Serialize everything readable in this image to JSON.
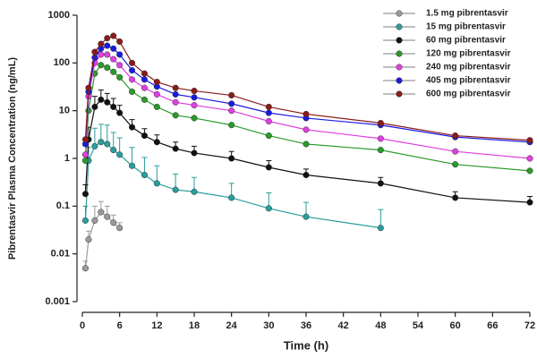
{
  "chart_data": {
    "type": "line",
    "y_label": "Pibrentasvir Plasma Concentration (ng/mL)",
    "x_label": "Time (h)",
    "ylog": true,
    "ylim": [
      0.001,
      1000
    ],
    "yticks": [
      0.001,
      0.01,
      0.1,
      1,
      10,
      100,
      1000
    ],
    "xlim": [
      0,
      72
    ],
    "xticks": [
      0,
      6,
      12,
      18,
      24,
      30,
      36,
      42,
      48,
      54,
      60,
      66,
      72
    ],
    "legend": "upper right",
    "series": [
      {
        "name": "1.5 mg pibrentasvir",
        "color": "#9a9a9a",
        "x": [
          0.5,
          1,
          2,
          3,
          4,
          5,
          6
        ],
        "values": [
          0.005,
          0.02,
          0.05,
          0.075,
          0.06,
          0.045,
          0.035
        ],
        "errors": [
          0.002,
          0.01,
          0.05,
          0.05,
          0.04,
          0.02,
          0.01
        ]
      },
      {
        "name": "15 mg pibrentasvir",
        "color": "#2a9d9d",
        "x": [
          0.5,
          1,
          2,
          3,
          4,
          5,
          6,
          8,
          10,
          12,
          15,
          18,
          24,
          30,
          36,
          48
        ],
        "values": [
          0.05,
          0.9,
          1.8,
          2.2,
          2.0,
          1.5,
          1.2,
          0.7,
          0.45,
          0.3,
          0.22,
          0.2,
          0.15,
          0.09,
          0.06,
          0.035
        ],
        "errors": [
          0.05,
          0.8,
          2.5,
          3,
          3,
          2,
          1.5,
          1,
          0.6,
          0.4,
          0.25,
          0.2,
          0.15,
          0.1,
          0.06,
          0.05
        ]
      },
      {
        "name": "60 mg pibrentasvir",
        "color": "#111111",
        "x": [
          0.5,
          1,
          2,
          3,
          4,
          5,
          6,
          8,
          10,
          12,
          15,
          18,
          24,
          30,
          36,
          48,
          60,
          72
        ],
        "values": [
          0.18,
          2.5,
          12,
          17,
          15,
          12,
          9,
          4.5,
          3,
          2.2,
          1.6,
          1.3,
          1.0,
          0.65,
          0.45,
          0.3,
          0.15,
          0.12
        ],
        "errors": [
          0.1,
          2,
          8,
          10,
          8,
          6,
          4,
          2,
          1.2,
          0.9,
          0.6,
          0.5,
          0.4,
          0.25,
          0.15,
          0.1,
          0.05,
          0.04
        ]
      },
      {
        "name": "120 mg pibrentasvir",
        "color": "#2a9a2a",
        "x": [
          0.5,
          1,
          2,
          3,
          4,
          5,
          6,
          8,
          10,
          12,
          15,
          18,
          24,
          30,
          36,
          48,
          60,
          72
        ],
        "values": [
          0.9,
          10,
          60,
          90,
          80,
          65,
          50,
          25,
          17,
          12,
          8,
          7,
          5,
          3,
          2,
          1.5,
          0.75,
          0.55
        ]
      },
      {
        "name": "240 mg pibrentasvir",
        "color": "#e040e0",
        "x": [
          0.5,
          1,
          2,
          3,
          4,
          5,
          6,
          8,
          10,
          12,
          15,
          18,
          24,
          30,
          36,
          48,
          60,
          72
        ],
        "values": [
          1.2,
          20,
          100,
          150,
          150,
          120,
          90,
          45,
          30,
          22,
          15,
          13,
          10,
          6,
          4,
          2.6,
          1.4,
          1.0
        ]
      },
      {
        "name": "405 mg pibrentasvir",
        "color": "#1a1ae0",
        "x": [
          0.5,
          1,
          2,
          3,
          4,
          5,
          6,
          8,
          10,
          12,
          15,
          18,
          24,
          30,
          36,
          48,
          60,
          72
        ],
        "values": [
          2,
          25,
          130,
          200,
          230,
          200,
          150,
          70,
          45,
          32,
          22,
          19,
          14,
          9,
          7,
          5,
          2.8,
          2.2
        ]
      },
      {
        "name": "600 mg pibrentasvir",
        "color": "#8b1a1a",
        "x": [
          0.5,
          1,
          2,
          3,
          4,
          5,
          6,
          8,
          10,
          12,
          15,
          18,
          24,
          30,
          36,
          48,
          60,
          72
        ],
        "values": [
          2.5,
          30,
          170,
          250,
          330,
          370,
          280,
          100,
          60,
          40,
          30,
          26,
          21,
          12,
          8.5,
          5.5,
          3,
          2.4
        ]
      }
    ]
  }
}
